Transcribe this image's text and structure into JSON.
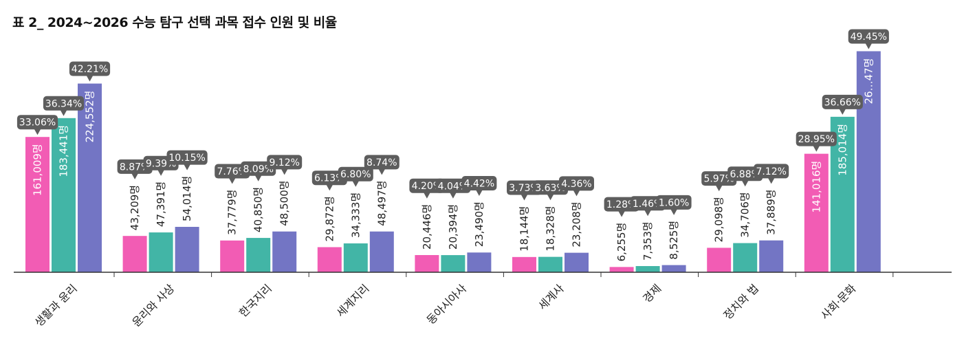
{
  "title": "표 2_ 2024~2026 수능 탐구 선택 과목 접수 인원 및 비율",
  "colors": {
    "2024": "#f25cb4",
    "2025": "#42b5a6",
    "2026": "#7375c4",
    "bubble": "#5d5d5d",
    "axis": "#333333"
  },
  "chart_data": {
    "type": "bar",
    "title": "표 2_ 2024~2026 수능 탐구 선택 과목 접수 인원 및 비율",
    "xlabel": "",
    "ylabel": "",
    "ylim": [
      0,
      270000
    ],
    "grid": false,
    "legend": "none",
    "categories": [
      "생활과 윤리",
      "윤리와 사상",
      "한국지리",
      "세계지리",
      "동아시아사",
      "세계사",
      "경제",
      "정치와 법",
      "사회·문화"
    ],
    "series": [
      {
        "color": "#f25cb4",
        "values": [
          161009,
          43209,
          37779,
          29872,
          20446,
          18144,
          6255,
          29098,
          141016
        ],
        "value_labels": [
          "161,009명",
          "43,209명",
          "37,779명",
          "29,872명",
          "20,446명",
          "18,144명",
          "6,255명",
          "29,098명",
          "141,016명"
        ],
        "percent_labels": [
          "33.06%",
          "8.87%",
          "7.76%",
          "6.13%",
          "4.20%",
          "3.73%",
          "1.28%",
          "5.97%",
          "28.95%"
        ]
      },
      {
        "color": "#42b5a6",
        "values": [
          183441,
          47391,
          40850,
          34333,
          20394,
          18328,
          7353,
          34706,
          185014
        ],
        "value_labels": [
          "183,441명",
          "47,391명",
          "40,850명",
          "34,333명",
          "20,394명",
          "18,328명",
          "7,353명",
          "34,706명",
          "185,014명"
        ],
        "percent_labels": [
          "36.34%",
          "9.39%",
          "8.09%",
          "6.80%",
          "4.04%",
          "3.63%",
          "1.46%",
          "6.88%",
          "36.66%"
        ]
      },
      {
        "color": "#7375c4",
        "values": [
          224552,
          54014,
          48500,
          48497,
          23490,
          23208,
          8525,
          37889,
          263047
        ],
        "value_labels": [
          "224,552명",
          "54,014명",
          "48,500명",
          "48,497명",
          "23,490명",
          "23,208명",
          "8,525명",
          "37,889명",
          "26…47명"
        ],
        "percent_labels": [
          "42.21%",
          "10.15%",
          "9.12%",
          "8.74%",
          "4.42%",
          "4.36%",
          "1.60%",
          "7.12%",
          "49.45%"
        ]
      }
    ]
  }
}
